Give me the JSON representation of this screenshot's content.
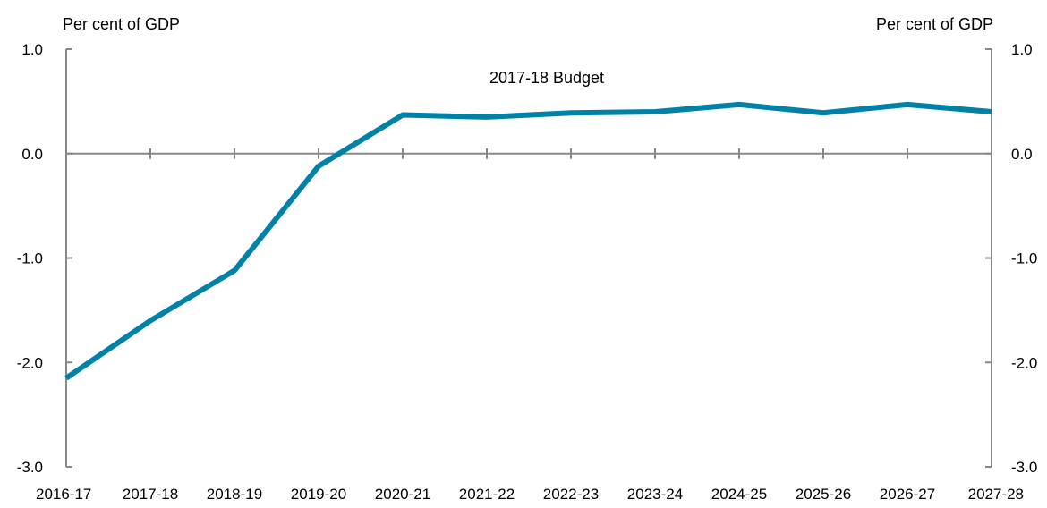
{
  "chart_data": {
    "type": "line",
    "title": "",
    "ylabel_left": "Per cent of GDP",
    "ylabel_right": "Per cent of GDP",
    "xlabel": "",
    "categories": [
      "2016-17",
      "2017-18",
      "2018-19",
      "2019-20",
      "2020-21",
      "2021-22",
      "2022-23",
      "2023-24",
      "2024-25",
      "2025-26",
      "2026-27",
      "2027-28"
    ],
    "series": [
      {
        "name": "2017-18 Budget",
        "color": "#0082A8",
        "values": [
          -2.15,
          -1.6,
          -1.12,
          -0.12,
          0.37,
          0.35,
          0.39,
          0.4,
          0.47,
          0.39,
          0.47,
          0.4
        ]
      }
    ],
    "ylim": [
      -3.0,
      1.0
    ],
    "yticks": [
      "1.0",
      "0.0",
      "-1.0",
      "-2.0",
      "-3.0"
    ],
    "ytick_values": [
      1.0,
      0.0,
      -1.0,
      -2.0,
      -3.0
    ],
    "grid": false,
    "legend": "inline-top-center",
    "axis_color": "#888888"
  }
}
